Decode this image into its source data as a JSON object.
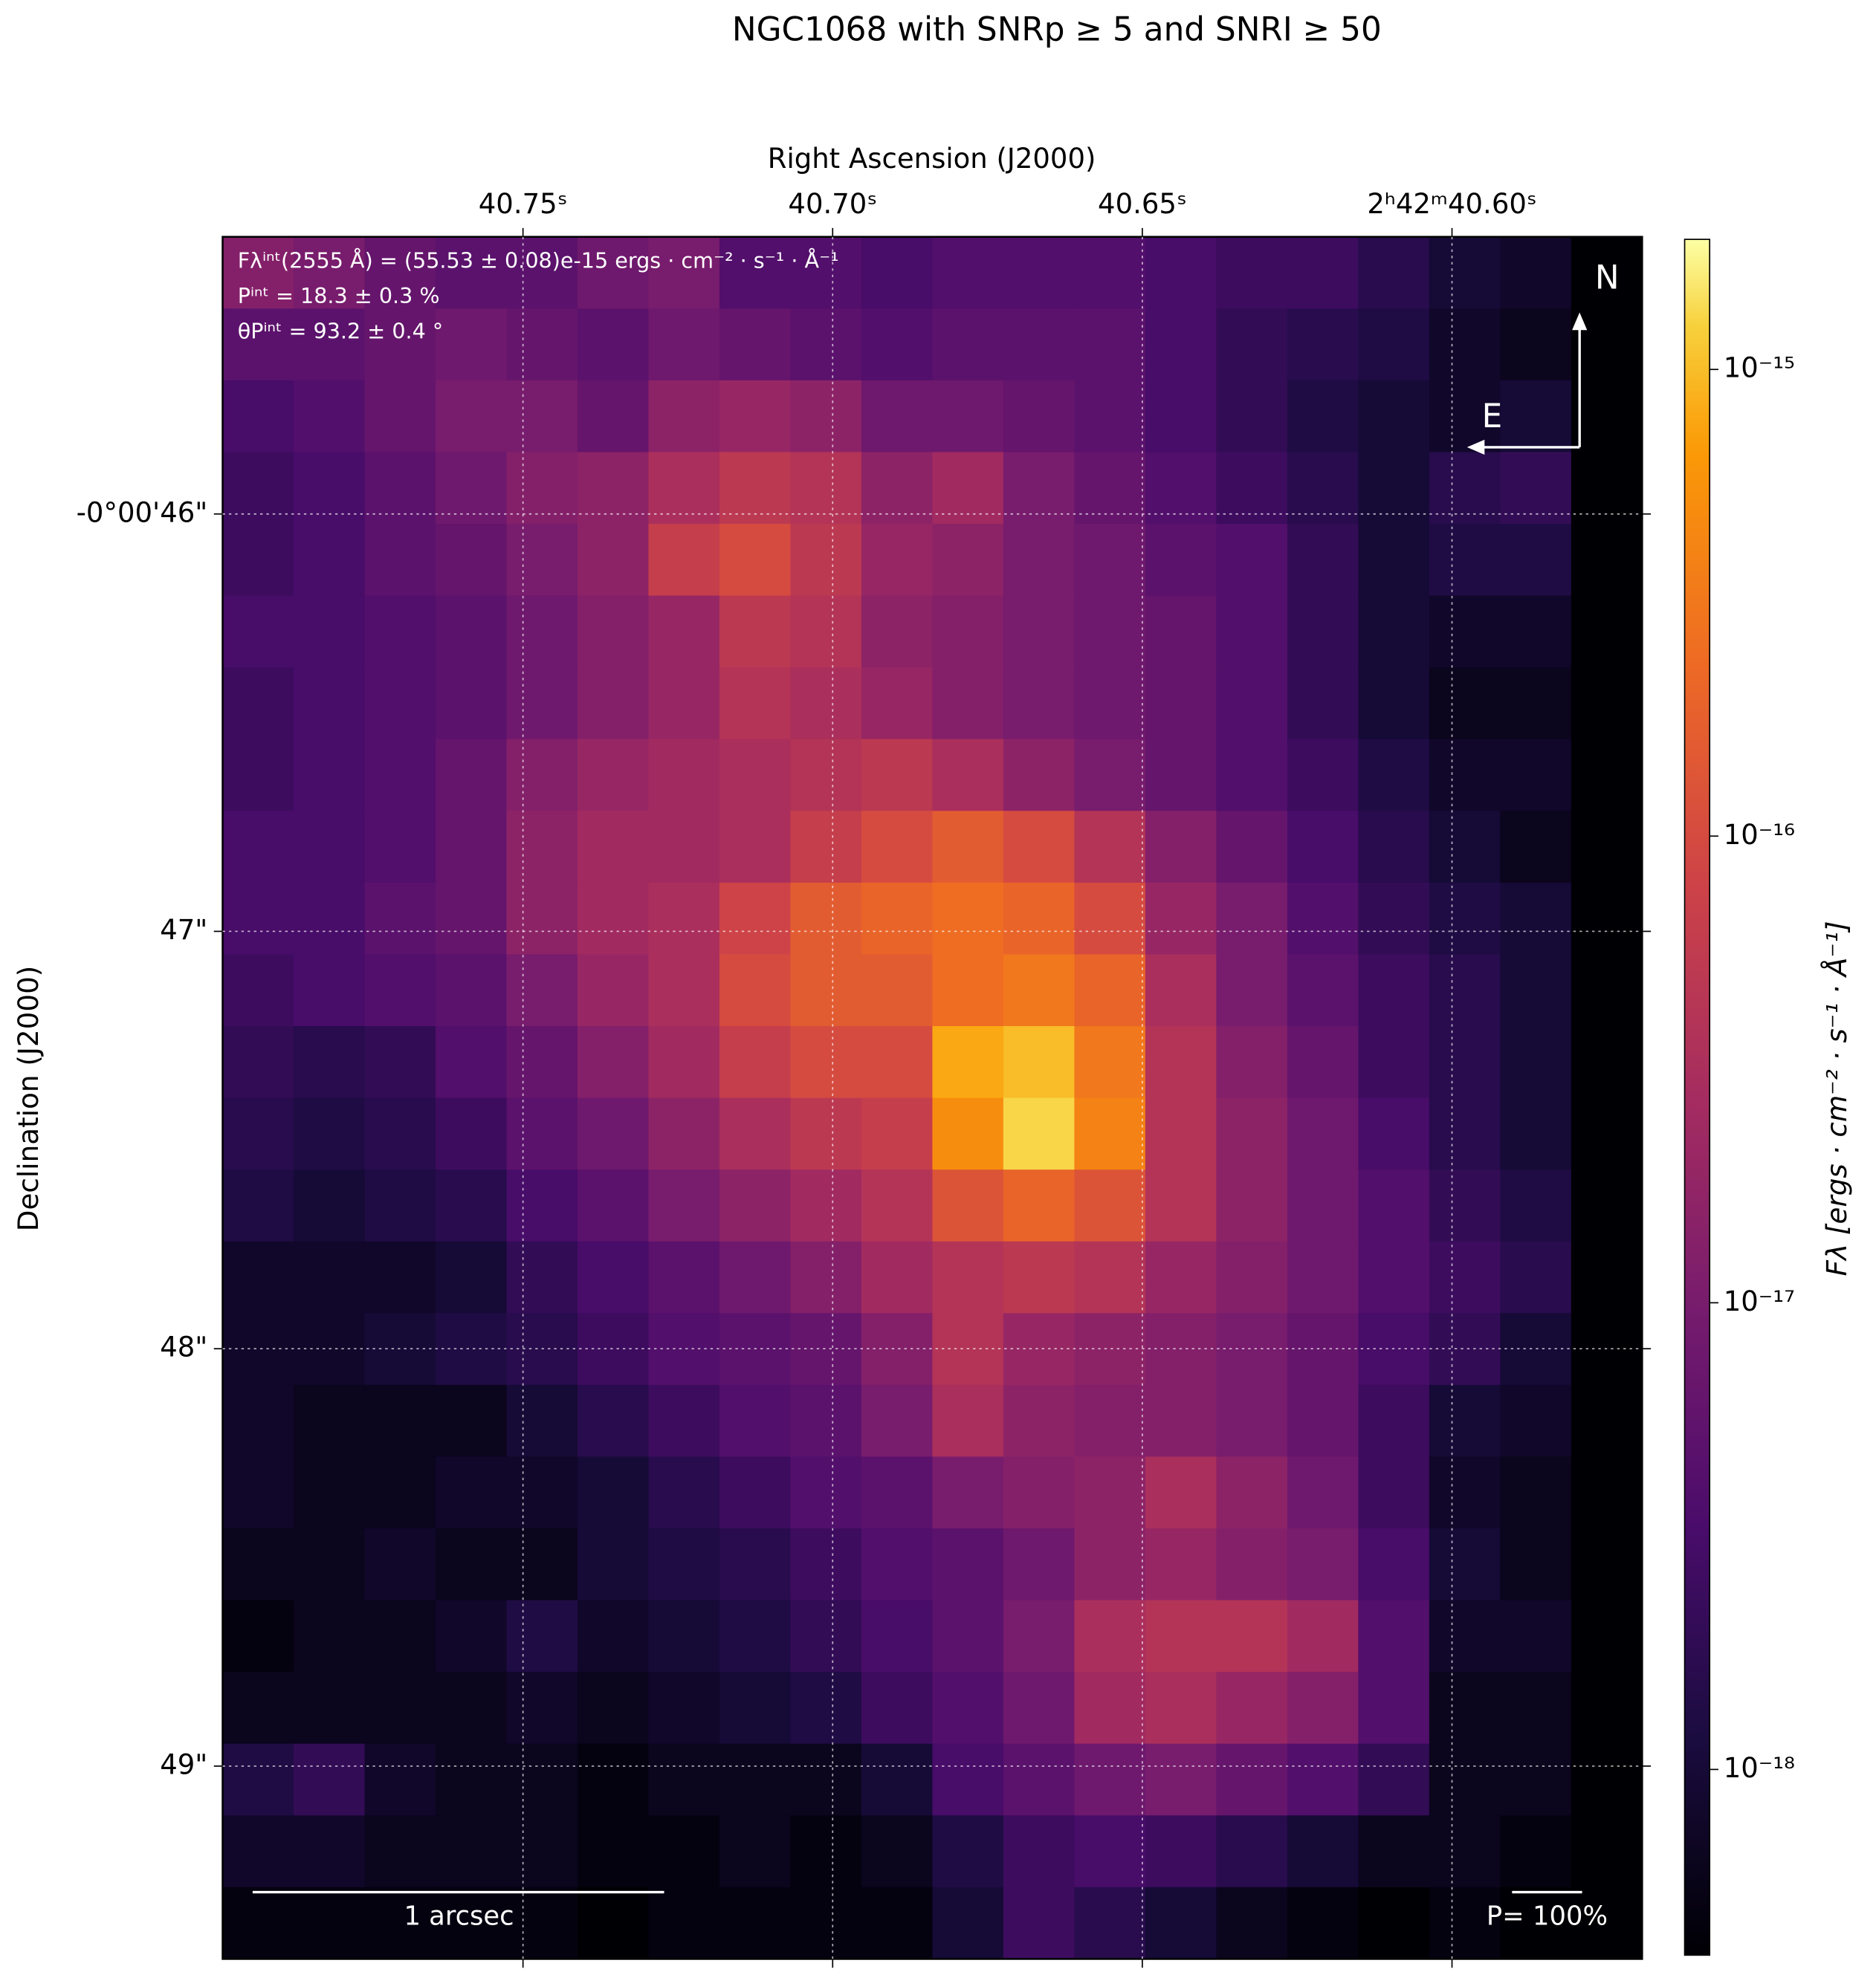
{
  "chart_data": {
    "type": "heatmap",
    "title": "NGC1068 with SNRp ≥ 5 and SNRI ≥ 50",
    "xlabel": "Right Ascension (J2000)",
    "ylabel": "Declination (J2000)",
    "colorbar_label": "Fλ [ergs · cm⁻² · s⁻¹ · Å⁻¹]",
    "colormap": "inferno",
    "color_log_scale": true,
    "grid": true,
    "xlim": [
      40.7985,
      40.5693
    ],
    "xticks": [
      {
        "value": 40.75,
        "label": "40.75ˢ"
      },
      {
        "value": 40.7,
        "label": "40.70ˢ"
      },
      {
        "value": 40.65,
        "label": "40.65ˢ"
      },
      {
        "value": 40.6,
        "label": "2ʰ42ᵐ40.60ˢ"
      }
    ],
    "ylim": [
      45.336,
      49.462
    ],
    "yticks": [
      {
        "value": 46,
        "label": "-0°00'46\""
      },
      {
        "value": 47,
        "label": "47\""
      },
      {
        "value": 48,
        "label": "48\""
      },
      {
        "value": 49,
        "label": "49\""
      }
    ],
    "clim": [
      4e-19,
      1.9e-15
    ],
    "cticks": [
      {
        "value": 1e-15,
        "label": "10⁻¹⁵"
      },
      {
        "value": 1e-16,
        "label": "10⁻¹⁶"
      },
      {
        "value": 1e-17,
        "label": "10⁻¹⁷"
      },
      {
        "value": 1e-18,
        "label": "10⁻¹⁸"
      }
    ],
    "annotations": [
      "Fλⁱⁿᵗ(2555 Å) = (55.53 ± 0.08)e-15 ergs · cm⁻² · s⁻¹ · Å⁻¹",
      "Pⁱⁿᵗ = 18.3 ± 0.3 %",
      "θPⁱⁿᵗ = 93.2 ± 0.4 °"
    ],
    "scale_bar_label": "1 arcsec",
    "polarization_key_label": "P= 100%",
    "compass": {
      "north": "N",
      "east": "E"
    },
    "values": [
      [
        1.3e-17,
        1e-17,
        6.3e-18,
        5e-18,
        5e-18,
        7.9e-18,
        1e-17,
        4e-18,
        4e-18,
        3.2e-18,
        4e-18,
        4e-18,
        4e-18,
        3.2e-18,
        2.5e-18,
        2.5e-18,
        1.6e-18,
        1e-18,
        7.9e-19,
        4e-19
      ],
      [
        5e-18,
        5e-18,
        6.3e-18,
        7.9e-18,
        6.3e-18,
        5e-18,
        7.9e-18,
        6.3e-18,
        5e-18,
        4e-18,
        5e-18,
        5e-18,
        5e-18,
        3.2e-18,
        2e-18,
        1.6e-18,
        1.3e-18,
        7.9e-19,
        6.3e-19,
        4e-19
      ],
      [
        3.2e-18,
        4e-18,
        6.3e-18,
        1e-17,
        1e-17,
        6.3e-18,
        1.6e-17,
        2e-17,
        1.6e-17,
        7.9e-18,
        7.9e-18,
        6.3e-18,
        5e-18,
        3.2e-18,
        2e-18,
        1.3e-18,
        1e-18,
        7.9e-19,
        1e-18,
        4e-19
      ],
      [
        2.5e-18,
        3.2e-18,
        5e-18,
        7.9e-18,
        1.3e-17,
        1.6e-17,
        3.2e-17,
        5e-17,
        4e-17,
        1.6e-17,
        2.5e-17,
        1e-17,
        6.3e-18,
        4e-18,
        2.5e-18,
        1.6e-18,
        1e-18,
        1.6e-18,
        2e-18,
        4e-19
      ],
      [
        2.5e-18,
        3.2e-18,
        5e-18,
        6.3e-18,
        1e-17,
        1.6e-17,
        6.3e-17,
        1e-16,
        5e-17,
        2e-17,
        1.6e-17,
        1e-17,
        7.9e-18,
        5e-18,
        4e-18,
        2e-18,
        1e-18,
        1.3e-18,
        1.3e-18,
        4e-19
      ],
      [
        3.2e-18,
        3.2e-18,
        4e-18,
        5e-18,
        7.9e-18,
        1.3e-17,
        2e-17,
        5e-17,
        4e-17,
        1.6e-17,
        1.3e-17,
        1e-17,
        7.9e-18,
        6.3e-18,
        4e-18,
        2e-18,
        1e-18,
        7.9e-19,
        7.9e-19,
        4e-19
      ],
      [
        2.5e-18,
        3.2e-18,
        4e-18,
        5e-18,
        7.9e-18,
        1.3e-17,
        2e-17,
        4e-17,
        3.2e-17,
        2e-17,
        1.3e-17,
        1e-17,
        7.9e-18,
        6.3e-18,
        4e-18,
        2e-18,
        1e-18,
        6.3e-19,
        6.3e-19,
        4e-19
      ],
      [
        2.5e-18,
        3.2e-18,
        4e-18,
        6.3e-18,
        1.3e-17,
        2e-17,
        2.5e-17,
        3.2e-17,
        4e-17,
        5e-17,
        3.2e-17,
        1.6e-17,
        1e-17,
        6.3e-18,
        4e-18,
        2.5e-18,
        1.3e-18,
        7.9e-19,
        7.9e-19,
        4e-19
      ],
      [
        3.2e-18,
        3.2e-18,
        4e-18,
        6.3e-18,
        1.6e-17,
        2.5e-17,
        2.5e-17,
        3.2e-17,
        6.3e-17,
        1e-16,
        1.6e-16,
        1e-16,
        4e-17,
        1.3e-17,
        6.3e-18,
        3.2e-18,
        1.6e-18,
        1e-18,
        6.3e-19,
        4e-19
      ],
      [
        3.2e-18,
        3.2e-18,
        5e-18,
        6.3e-18,
        1.6e-17,
        2.5e-17,
        3.2e-17,
        7.9e-17,
        1.6e-16,
        2e-16,
        2.5e-16,
        2e-16,
        1e-16,
        2e-17,
        1e-17,
        4e-18,
        2e-18,
        1.3e-18,
        1e-18,
        4e-19
      ],
      [
        2.5e-18,
        3.2e-18,
        4e-18,
        5e-18,
        1e-17,
        2e-17,
        3.2e-17,
        1e-16,
        1.6e-16,
        1.6e-16,
        2.5e-16,
        3.2e-16,
        2e-16,
        3.2e-17,
        1e-17,
        5e-18,
        2.5e-18,
        1.6e-18,
        1e-18,
        4e-19
      ],
      [
        2e-18,
        1.6e-18,
        2e-18,
        4e-18,
        6.3e-18,
        1.3e-17,
        2.5e-17,
        6.3e-17,
        1e-16,
        1e-16,
        7.9e-16,
        1e-15,
        3.2e-16,
        4e-17,
        1.3e-17,
        6.3e-18,
        2.5e-18,
        1.6e-18,
        1e-18,
        4e-19
      ],
      [
        1.6e-18,
        1.3e-18,
        1.6e-18,
        2.5e-18,
        5e-18,
        7.9e-18,
        1.6e-17,
        3.2e-17,
        5e-17,
        6.3e-17,
        5e-16,
        1.3e-15,
        4e-16,
        4e-17,
        1.6e-17,
        7.9e-18,
        3.2e-18,
        1.6e-18,
        1e-18,
        4e-19
      ],
      [
        1.3e-18,
        1e-18,
        1.3e-18,
        1.6e-18,
        3.2e-18,
        5e-18,
        1e-17,
        1.6e-17,
        2.5e-17,
        4e-17,
        1.3e-16,
        2e-16,
        1.3e-16,
        4e-17,
        1.6e-17,
        7.9e-18,
        4e-18,
        2e-18,
        1.3e-18,
        4e-19
      ],
      [
        7.9e-19,
        7.9e-19,
        7.9e-19,
        1e-18,
        2e-18,
        3.2e-18,
        5e-18,
        7.9e-18,
        1.3e-17,
        2.5e-17,
        4e-17,
        5e-17,
        4e-17,
        2e-17,
        1.3e-17,
        7.9e-18,
        4e-18,
        2.5e-18,
        1.6e-18,
        4e-19
      ],
      [
        7.9e-19,
        7.9e-19,
        1e-18,
        1.3e-18,
        1.6e-18,
        2.5e-18,
        4e-18,
        5e-18,
        6.3e-18,
        1.3e-17,
        4e-17,
        2e-17,
        1.6e-17,
        1.3e-17,
        1e-17,
        6.3e-18,
        3.2e-18,
        2e-18,
        1e-18,
        4e-19
      ],
      [
        7.9e-19,
        6.3e-19,
        6.3e-19,
        6.3e-19,
        1e-18,
        1.6e-18,
        2.5e-18,
        4e-18,
        5e-18,
        1e-17,
        3.2e-17,
        1.6e-17,
        1.3e-17,
        1.3e-17,
        1e-17,
        6.3e-18,
        2.5e-18,
        1e-18,
        7.9e-19,
        4e-19
      ],
      [
        7.9e-19,
        6.3e-19,
        6.3e-19,
        7.9e-19,
        7.9e-19,
        1e-18,
        1.6e-18,
        2.5e-18,
        4e-18,
        5e-18,
        1e-17,
        1.3e-17,
        1.6e-17,
        3.2e-17,
        1.6e-17,
        7.9e-18,
        2.5e-18,
        7.9e-19,
        6.3e-19,
        4e-19
      ],
      [
        6.3e-19,
        6.3e-19,
        7.9e-19,
        6.3e-19,
        6.3e-19,
        1e-18,
        1.3e-18,
        1.6e-18,
        2.5e-18,
        4e-18,
        5e-18,
        7.9e-18,
        1.6e-17,
        2e-17,
        1.3e-17,
        1e-17,
        3.2e-18,
        1e-18,
        6.3e-19,
        4e-19
      ],
      [
        5e-19,
        6.3e-19,
        6.3e-19,
        7.9e-19,
        1.3e-18,
        7.9e-19,
        1e-18,
        1.3e-18,
        2e-18,
        3.2e-18,
        5e-18,
        1e-17,
        3.2e-17,
        4e-17,
        4e-17,
        2.5e-17,
        4e-18,
        7.9e-19,
        7.9e-19,
        4e-19
      ],
      [
        6.3e-19,
        6.3e-19,
        6.3e-19,
        6.3e-19,
        7.9e-19,
        6.3e-19,
        7.9e-19,
        1e-18,
        1.3e-18,
        2.5e-18,
        4e-18,
        7.9e-18,
        2.5e-17,
        3.2e-17,
        2e-17,
        1.3e-17,
        4e-18,
        6.3e-19,
        6.3e-19,
        4e-19
      ],
      [
        1.3e-18,
        2e-18,
        7.9e-19,
        6.3e-19,
        6.3e-19,
        5e-19,
        6.3e-19,
        6.3e-19,
        6.3e-19,
        1e-18,
        3.2e-18,
        5e-18,
        7.9e-18,
        1e-17,
        6.3e-18,
        4e-18,
        2e-18,
        6.3e-19,
        6.3e-19,
        4e-19
      ],
      [
        7.9e-19,
        7.9e-19,
        6.3e-19,
        6.3e-19,
        6.3e-19,
        5e-19,
        5e-19,
        6.3e-19,
        5e-19,
        6.3e-19,
        1.3e-18,
        2.5e-18,
        3.2e-18,
        2.5e-18,
        1.6e-18,
        1e-18,
        6.3e-19,
        6.3e-19,
        5e-19,
        4e-19
      ],
      [
        5e-19,
        5e-19,
        5e-19,
        5e-19,
        5e-19,
        4e-19,
        5e-19,
        5e-19,
        5e-19,
        5e-19,
        1e-18,
        2.5e-18,
        1.6e-18,
        1e-18,
        6.3e-19,
        5e-19,
        4e-19,
        5e-19,
        4e-19,
        4e-19
      ]
    ]
  }
}
